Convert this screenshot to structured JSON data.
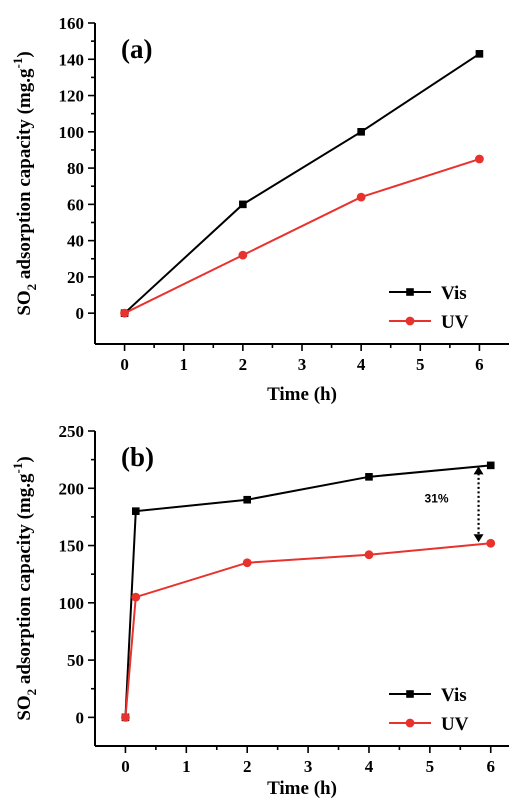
{
  "chart_data": [
    {
      "type": "line",
      "panel_label": "(a)",
      "xlabel": "Time (h)",
      "ylabel_prefix": "SO",
      "ylabel_sub": "2",
      "ylabel_rest": " adsorption capacity (mg.g",
      "ylabel_sup": "-1",
      "ylabel_close": ")",
      "xlim": [
        -0.5,
        6.5
      ],
      "ylim": [
        -17,
        160
      ],
      "xticks": [
        "0",
        "1",
        "2",
        "3",
        "4",
        "5",
        "6"
      ],
      "yticks": [
        "0",
        "20",
        "40",
        "60",
        "80",
        "100",
        "120",
        "140",
        "160"
      ],
      "legend_position": "bottom-right",
      "series": [
        {
          "name": "Vis",
          "color": "#000000",
          "marker": "square",
          "x": [
            0,
            2,
            4,
            6
          ],
          "y": [
            0,
            60,
            100,
            143
          ]
        },
        {
          "name": "UV",
          "color": "#e8322e",
          "marker": "circle",
          "x": [
            0,
            2,
            4,
            6
          ],
          "y": [
            0,
            32,
            64,
            85
          ]
        }
      ]
    },
    {
      "type": "line",
      "panel_label": "(b)",
      "xlabel": "Time (h)",
      "ylabel_prefix": "SO",
      "ylabel_sub": "2",
      "ylabel_rest": " adsorption capacity (mg.g",
      "ylabel_sup": "-1",
      "ylabel_close": ")",
      "xlim": [
        -0.5,
        6.3
      ],
      "ylim": [
        -25,
        250
      ],
      "xticks": [
        "0",
        "1",
        "2",
        "3",
        "4",
        "5",
        "6"
      ],
      "yticks": [
        "0",
        "50",
        "100",
        "150",
        "200",
        "250"
      ],
      "legend_position": "bottom-right",
      "annotation": {
        "text": "31%",
        "x": 5.8,
        "y_from": 152,
        "y_to": 220
      },
      "series": [
        {
          "name": "Vis",
          "color": "#000000",
          "marker": "square",
          "x": [
            0,
            0.17,
            2,
            4,
            6
          ],
          "y": [
            0,
            180,
            190,
            210,
            220
          ]
        },
        {
          "name": "UV",
          "color": "#e8322e",
          "marker": "circle",
          "x": [
            0,
            0.17,
            2,
            4,
            6
          ],
          "y": [
            0,
            105,
            135,
            142,
            152
          ]
        }
      ]
    }
  ]
}
